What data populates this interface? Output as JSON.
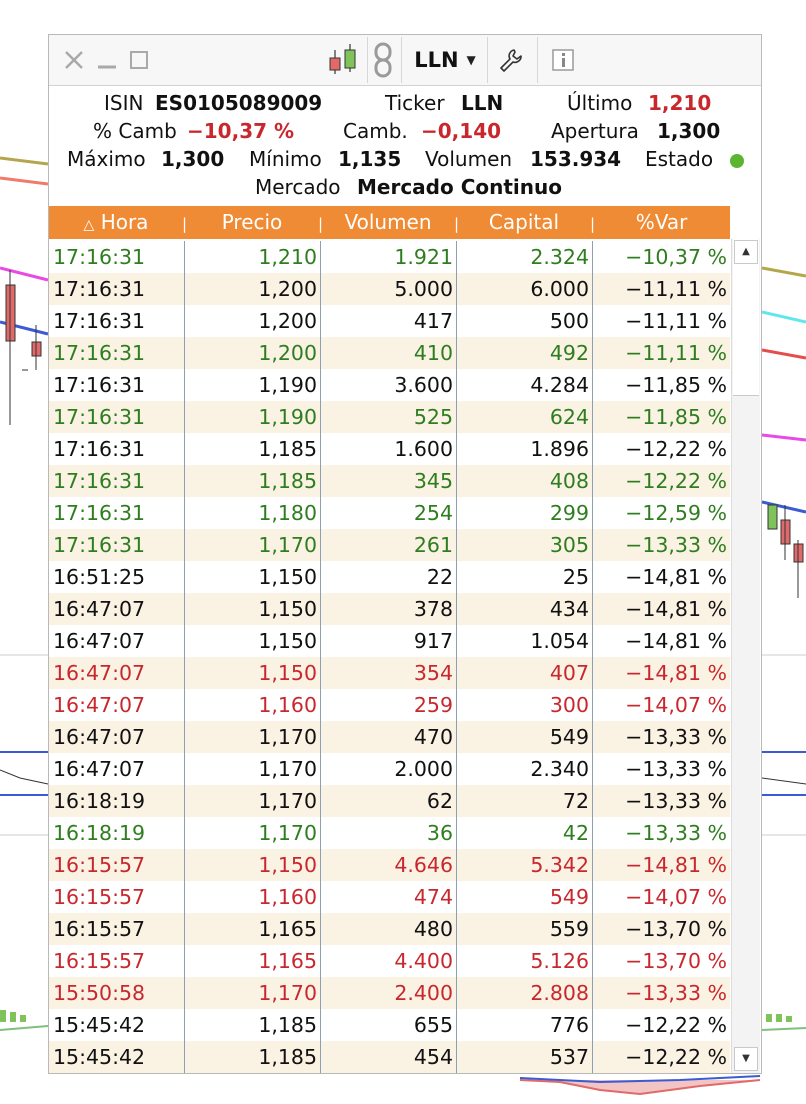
{
  "toolbar": {
    "ticker": "LLN",
    "caret": "▼",
    "close_glyph": "✕"
  },
  "info": {
    "isin_label": "ISIN",
    "isin_value": "ES0105089009",
    "ticker_label": "Ticker",
    "ticker_value": "LLN",
    "ultimo_label": "Último",
    "ultimo_value": "1,210",
    "pcamb_label": "% Camb",
    "pcamb_value": "−10,37 %",
    "camb_label": "Camb.",
    "camb_value": "−0,140",
    "apertura_label": "Apertura",
    "apertura_value": "1,300",
    "maximo_label": "Máximo",
    "maximo_value": "1,300",
    "minimo_label": "Mínimo",
    "minimo_value": "1,135",
    "volumen_label": "Volumen",
    "volumen_value": "153.934",
    "estado_label": "Estado",
    "mercado_label": "Mercado",
    "mercado_value": "Mercado Continuo"
  },
  "table": {
    "sort_glyph": "△",
    "headers": [
      "Hora",
      "Precio",
      "Volumen",
      "Capital",
      "%Var"
    ],
    "col_separator": "|",
    "rows": [
      {
        "hora": "17:16:31",
        "precio": "1,210",
        "volumen": "1.921",
        "capital": "2.324",
        "var": "−10,37 %",
        "tone": "green"
      },
      {
        "hora": "17:16:31",
        "precio": "1,200",
        "volumen": "5.000",
        "capital": "6.000",
        "var": "−11,11 %",
        "tone": "black"
      },
      {
        "hora": "17:16:31",
        "precio": "1,200",
        "volumen": "417",
        "capital": "500",
        "var": "−11,11 %",
        "tone": "black"
      },
      {
        "hora": "17:16:31",
        "precio": "1,200",
        "volumen": "410",
        "capital": "492",
        "var": "−11,11 %",
        "tone": "green"
      },
      {
        "hora": "17:16:31",
        "precio": "1,190",
        "volumen": "3.600",
        "capital": "4.284",
        "var": "−11,85 %",
        "tone": "black"
      },
      {
        "hora": "17:16:31",
        "precio": "1,190",
        "volumen": "525",
        "capital": "624",
        "var": "−11,85 %",
        "tone": "green"
      },
      {
        "hora": "17:16:31",
        "precio": "1,185",
        "volumen": "1.600",
        "capital": "1.896",
        "var": "−12,22 %",
        "tone": "black"
      },
      {
        "hora": "17:16:31",
        "precio": "1,185",
        "volumen": "345",
        "capital": "408",
        "var": "−12,22 %",
        "tone": "green"
      },
      {
        "hora": "17:16:31",
        "precio": "1,180",
        "volumen": "254",
        "capital": "299",
        "var": "−12,59 %",
        "tone": "green"
      },
      {
        "hora": "17:16:31",
        "precio": "1,170",
        "volumen": "261",
        "capital": "305",
        "var": "−13,33 %",
        "tone": "green"
      },
      {
        "hora": "16:51:25",
        "precio": "1,150",
        "volumen": "22",
        "capital": "25",
        "var": "−14,81 %",
        "tone": "black"
      },
      {
        "hora": "16:47:07",
        "precio": "1,150",
        "volumen": "378",
        "capital": "434",
        "var": "−14,81 %",
        "tone": "black"
      },
      {
        "hora": "16:47:07",
        "precio": "1,150",
        "volumen": "917",
        "capital": "1.054",
        "var": "−14,81 %",
        "tone": "black"
      },
      {
        "hora": "16:47:07",
        "precio": "1,150",
        "volumen": "354",
        "capital": "407",
        "var": "−14,81 %",
        "tone": "red"
      },
      {
        "hora": "16:47:07",
        "precio": "1,160",
        "volumen": "259",
        "capital": "300",
        "var": "−14,07 %",
        "tone": "red"
      },
      {
        "hora": "16:47:07",
        "precio": "1,170",
        "volumen": "470",
        "capital": "549",
        "var": "−13,33 %",
        "tone": "black"
      },
      {
        "hora": "16:47:07",
        "precio": "1,170",
        "volumen": "2.000",
        "capital": "2.340",
        "var": "−13,33 %",
        "tone": "black"
      },
      {
        "hora": "16:18:19",
        "precio": "1,170",
        "volumen": "62",
        "capital": "72",
        "var": "−13,33 %",
        "tone": "black"
      },
      {
        "hora": "16:18:19",
        "precio": "1,170",
        "volumen": "36",
        "capital": "42",
        "var": "−13,33 %",
        "tone": "green"
      },
      {
        "hora": "16:15:57",
        "precio": "1,150",
        "volumen": "4.646",
        "capital": "5.342",
        "var": "−14,81 %",
        "tone": "red"
      },
      {
        "hora": "16:15:57",
        "precio": "1,160",
        "volumen": "474",
        "capital": "549",
        "var": "−14,07 %",
        "tone": "red"
      },
      {
        "hora": "16:15:57",
        "precio": "1,165",
        "volumen": "480",
        "capital": "559",
        "var": "−13,70 %",
        "tone": "black"
      },
      {
        "hora": "16:15:57",
        "precio": "1,165",
        "volumen": "4.400",
        "capital": "5.126",
        "var": "−13,70 %",
        "tone": "red"
      },
      {
        "hora": "15:50:58",
        "precio": "1,170",
        "volumen": "2.400",
        "capital": "2.808",
        "var": "−13,33 %",
        "tone": "red"
      },
      {
        "hora": "15:45:42",
        "precio": "1,185",
        "volumen": "655",
        "capital": "776",
        "var": "−12,22 %",
        "tone": "black"
      },
      {
        "hora": "15:45:42",
        "precio": "1,185",
        "volumen": "454",
        "capital": "537",
        "var": "−12,22 %",
        "tone": "black"
      }
    ]
  },
  "colors": {
    "green": "#2e7d1f",
    "red": "#c8282d",
    "black": "#111111",
    "header_orange": "#f08b35",
    "row_alt": "#faf2e3",
    "estado_dot": "#5cb531"
  },
  "icons": {
    "close": "close-icon",
    "minimize": "minimize-icon",
    "maximize": "maximize-icon",
    "chart": "candlestick-chart-icon",
    "link": "link-chain-icon",
    "settings": "wrench-icon",
    "info": "info-icon",
    "scroll_up": "scroll-up-arrow-icon",
    "scroll_down": "scroll-down-arrow-icon"
  }
}
